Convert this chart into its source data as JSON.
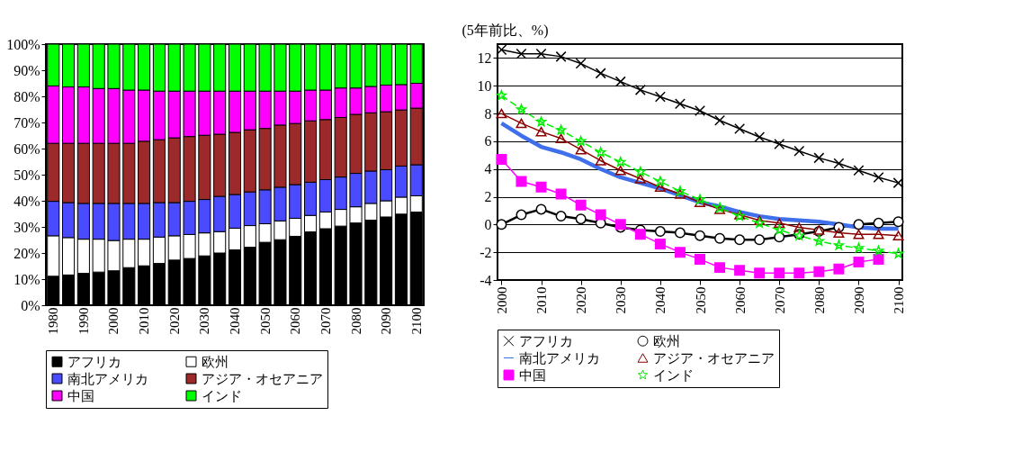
{
  "chart_data": [
    {
      "type": "bar",
      "stacked": true,
      "grid": false,
      "legend": "bottom",
      "categories": [
        "1980",
        null,
        "1990",
        null,
        "2000",
        null,
        "2010",
        null,
        "2020",
        null,
        "2030",
        null,
        "2040",
        null,
        "2050",
        null,
        "2060",
        null,
        "2070",
        null,
        "2080",
        null,
        "2090",
        null,
        "2100"
      ],
      "ylim": [
        0,
        100
      ],
      "yticks": [
        {
          "value": 0,
          "label": "0%"
        },
        {
          "value": 10,
          "label": "10%"
        },
        {
          "value": 20,
          "label": "20%"
        },
        {
          "value": 30,
          "label": "30%"
        },
        {
          "value": 40,
          "label": "40%"
        },
        {
          "value": 50,
          "label": "50%"
        },
        {
          "value": 60,
          "label": "60%"
        },
        {
          "value": 70,
          "label": "70%"
        },
        {
          "value": 80,
          "label": "80%"
        },
        {
          "value": 90,
          "label": "90%"
        },
        {
          "value": 100,
          "label": "100%"
        }
      ],
      "series": [
        {
          "name": "アフリカ",
          "color": "#000000",
          "values": [
            11.1,
            11.6,
            12.2,
            12.7,
            13.2,
            14.4,
            15.1,
            16.0,
            17.3,
            17.9,
            18.9,
            20.0,
            21.2,
            22.2,
            24.1,
            25.1,
            26.4,
            28.1,
            29.3,
            30.3,
            31.5,
            32.6,
            33.8,
            34.9,
            35.7
          ]
        },
        {
          "name": "欧州",
          "color": "#ffffff",
          "values": [
            15.5,
            14.3,
            13.1,
            12.6,
            11.6,
            10.9,
            10.2,
            10.1,
            9.3,
            9.2,
            8.8,
            8.2,
            8.3,
            8.3,
            7.1,
            7.2,
            6.9,
            6.3,
            6.4,
            6.4,
            6.2,
            6.4,
            6.2,
            6.5,
            6.2
          ]
        },
        {
          "name": "南北アメリカ",
          "color": "#4a4aff",
          "values": [
            13.2,
            13.4,
            13.7,
            13.7,
            14.2,
            13.7,
            13.7,
            13.2,
            12.7,
            12.7,
            12.8,
            13.5,
            12.9,
            12.9,
            13.0,
            12.9,
            12.9,
            12.7,
            12.4,
            12.4,
            12.8,
            12.4,
            11.9,
            11.9,
            11.9
          ]
        },
        {
          "name": "アジア・オセアニア",
          "color": "#9c2a2a",
          "values": [
            22.2,
            22.7,
            23.0,
            23.0,
            23.0,
            23.0,
            23.8,
            24.1,
            24.8,
            24.8,
            24.6,
            23.8,
            23.8,
            23.8,
            23.5,
            23.8,
            23.4,
            23.5,
            23.0,
            22.8,
            22.6,
            22.3,
            22.2,
            21.5,
            21.7
          ]
        },
        {
          "name": "中国",
          "color": "#ff00ff",
          "values": [
            22.0,
            21.6,
            21.6,
            21.0,
            21.0,
            20.4,
            19.6,
            18.6,
            17.9,
            17.4,
            16.9,
            16.5,
            15.8,
            14.8,
            14.3,
            13.0,
            12.4,
            11.8,
            11.3,
            11.3,
            10.1,
            10.1,
            10.2,
            9.7,
            9.5
          ]
        },
        {
          "name": "インド",
          "color": "#00ff00",
          "values": [
            16.0,
            16.4,
            16.4,
            17.0,
            17.0,
            17.6,
            17.6,
            18.0,
            18.0,
            18.0,
            18.0,
            18.0,
            18.0,
            18.0,
            18.0,
            18.0,
            18.0,
            17.6,
            17.6,
            16.8,
            16.8,
            16.2,
            15.7,
            15.5,
            15.0
          ]
        }
      ]
    },
    {
      "type": "line",
      "grid": "y",
      "legend": "bottom",
      "ylabel": "(5年前比、%)",
      "x": [
        2000,
        2005,
        2010,
        2015,
        2020,
        2025,
        2030,
        2035,
        2040,
        2045,
        2050,
        2055,
        2060,
        2065,
        2070,
        2075,
        2080,
        2085,
        2090,
        2095,
        2100
      ],
      "xlim": [
        1999,
        2101
      ],
      "xticks": [
        2000,
        2010,
        2020,
        2030,
        2040,
        2050,
        2060,
        2070,
        2080,
        2090,
        2100
      ],
      "ylim": [
        -4,
        13
      ],
      "yticks": [
        -4,
        -2,
        0,
        2,
        4,
        6,
        8,
        10,
        12
      ],
      "series": [
        {
          "name": "アフリカ",
          "color": "#000000",
          "marker": "cross",
          "line_style": "solid",
          "values": [
            12.6,
            12.3,
            12.3,
            12.1,
            11.6,
            10.9,
            10.3,
            9.7,
            9.2,
            8.7,
            8.2,
            7.5,
            6.9,
            6.3,
            5.8,
            5.3,
            4.8,
            4.4,
            3.9,
            3.4,
            3.0
          ]
        },
        {
          "name": "欧州",
          "color": "#000000",
          "marker": "circle",
          "line_style": "solid",
          "values": [
            0.0,
            0.7,
            1.1,
            0.6,
            0.4,
            0.1,
            -0.2,
            -0.4,
            -0.5,
            -0.6,
            -0.8,
            -1.0,
            -1.1,
            -1.1,
            -0.9,
            -0.7,
            -0.5,
            -0.2,
            0.0,
            0.1,
            0.2
          ]
        },
        {
          "name": "南北アメリカ",
          "color": "#3f6fea",
          "marker": "none",
          "line_style": "solid",
          "values": [
            7.3,
            6.4,
            5.6,
            5.2,
            4.7,
            4.0,
            3.4,
            3.0,
            2.6,
            2.1,
            1.6,
            1.3,
            0.9,
            0.6,
            0.4,
            0.3,
            0.2,
            0.0,
            -0.2,
            -0.3,
            -0.3
          ]
        },
        {
          "name": "アジア・オセアニア",
          "color": "#8b0000",
          "marker": "triangle",
          "line_style": "solid",
          "values": [
            8.0,
            7.3,
            6.7,
            6.2,
            5.4,
            4.6,
            3.9,
            3.3,
            2.7,
            2.2,
            1.6,
            1.1,
            0.7,
            0.3,
            0.1,
            -0.2,
            -0.4,
            -0.6,
            -0.7,
            -0.7,
            -0.8
          ]
        },
        {
          "name": "中国",
          "color": "#ff00ff",
          "marker": "square",
          "line_style": "solid",
          "values": [
            4.7,
            3.1,
            2.7,
            2.2,
            1.4,
            0.7,
            0.0,
            -0.7,
            -1.4,
            -2.0,
            -2.5,
            -3.1,
            -3.3,
            -3.5,
            -3.5,
            -3.5,
            -3.4,
            -3.2,
            -2.7,
            -2.5,
            null
          ]
        },
        {
          "name": "インド",
          "color": "#00ee00",
          "marker": "star",
          "line_style": "dashed",
          "values": [
            9.3,
            8.3,
            7.4,
            6.8,
            6.0,
            5.2,
            4.5,
            3.8,
            3.1,
            2.4,
            1.8,
            1.2,
            0.6,
            0.1,
            -0.4,
            -0.8,
            -1.2,
            -1.5,
            -1.7,
            -1.9,
            -2.1
          ]
        }
      ]
    }
  ]
}
